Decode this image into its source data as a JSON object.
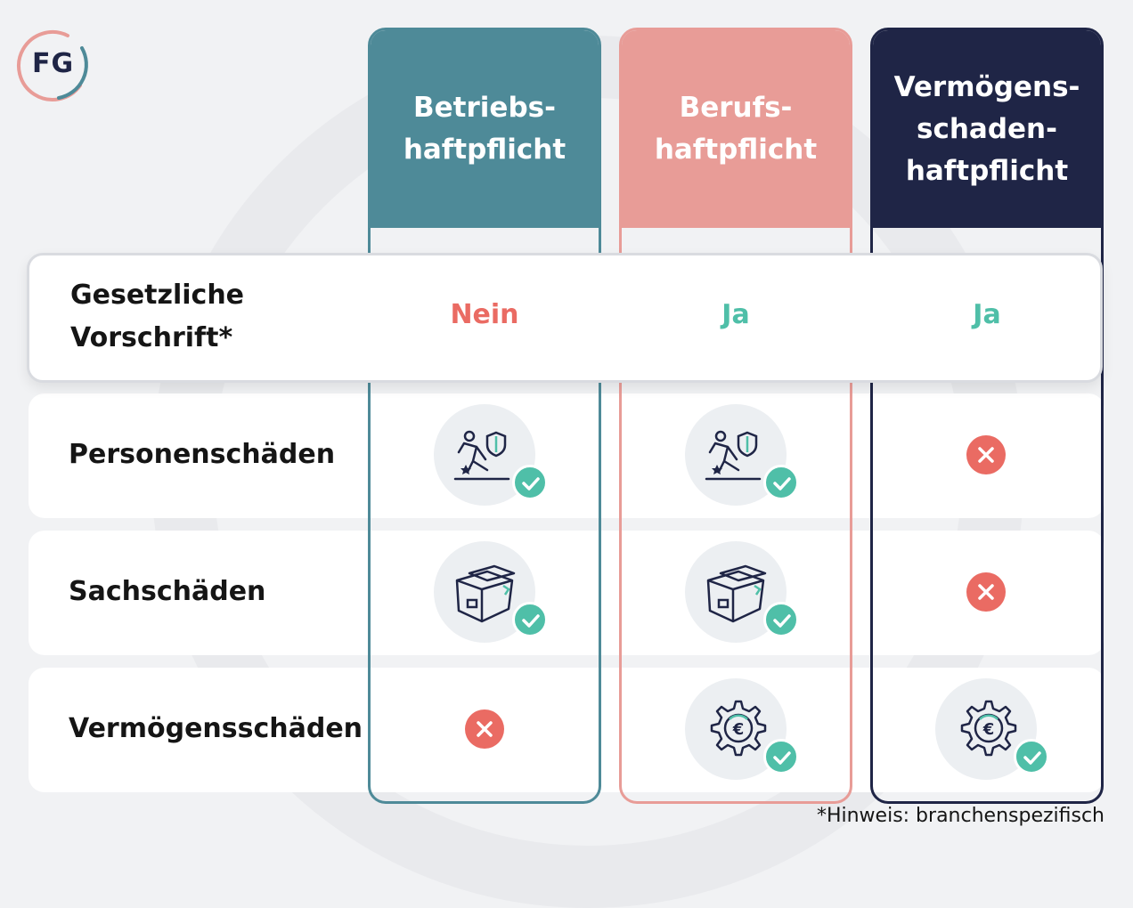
{
  "logo": {
    "text": "FG"
  },
  "columns": [
    {
      "title": "Betriebs-\nhaftpflicht",
      "color": "#4e8a98"
    },
    {
      "title": "Berufs-\nhaftpflicht",
      "color": "#e89c97"
    },
    {
      "title": "Vermögens-\nschaden-\nhaftpflicht",
      "color": "#1f2546"
    }
  ],
  "rows": [
    {
      "label_line1": "Gesetzliche",
      "label_line2": "Vorschrift*",
      "values": [
        "Nein",
        "Ja",
        "Ja"
      ]
    },
    {
      "label": "Personenschäden",
      "icon": "person-fall-shield-icon",
      "values": [
        "check",
        "check",
        "cross"
      ]
    },
    {
      "label": "Sachschäden",
      "icon": "damaged-box-icon",
      "values": [
        "check",
        "check",
        "cross"
      ]
    },
    {
      "label": "Vermögensschäden",
      "icon": "euro-gear-icon",
      "values": [
        "cross",
        "check",
        "check"
      ]
    }
  ],
  "footnote": "*Hinweis: branchenspezifisch",
  "colors": {
    "yes": "#4fbfa8",
    "no": "#ea6b63",
    "navy": "#1f2546"
  }
}
